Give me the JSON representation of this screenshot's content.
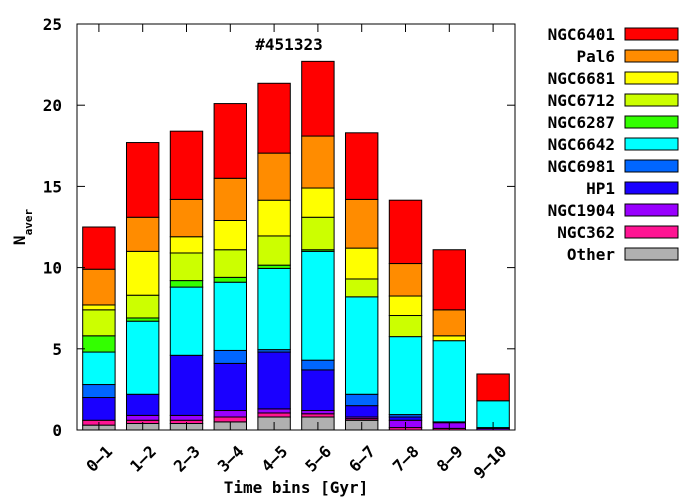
{
  "chart_data": {
    "type": "bar",
    "stacked": true,
    "title": "",
    "annotation": "#451323",
    "xlabel": "Time bins [Gyr]",
    "ylabel_main": "N",
    "ylabel_sub": "aver",
    "ylim": [
      0,
      25
    ],
    "yticks": [
      0,
      5,
      10,
      15,
      20,
      25
    ],
    "categories": [
      "0–1",
      "1–2",
      "2–3",
      "3–4",
      "4–5",
      "5–6",
      "6–7",
      "7–8",
      "8–9",
      "9–10"
    ],
    "legend_position": "outside-right",
    "series": [
      {
        "name": "Other",
        "color": "#b0b0b0",
        "values": [
          0.3,
          0.4,
          0.4,
          0.5,
          0.8,
          0.8,
          0.6,
          0.0,
          0.0,
          0.0
        ]
      },
      {
        "name": "NGC362",
        "color": "#ff1493",
        "values": [
          0.3,
          0.2,
          0.2,
          0.3,
          0.25,
          0.2,
          0.1,
          0.15,
          0.1,
          0.0
        ]
      },
      {
        "name": "NGC1904",
        "color": "#9900ff",
        "values": [
          0.0,
          0.3,
          0.3,
          0.4,
          0.25,
          0.2,
          0.1,
          0.45,
          0.35,
          0.1
        ]
      },
      {
        "name": "HP1",
        "color": "#1a00ff",
        "values": [
          1.4,
          1.3,
          3.7,
          2.9,
          3.5,
          2.5,
          0.7,
          0.2,
          0.0,
          0.05
        ]
      },
      {
        "name": "NGC6981",
        "color": "#0066ff",
        "values": [
          0.8,
          0.0,
          0.0,
          0.8,
          0.15,
          0.6,
          0.7,
          0.15,
          0.05,
          0.0
        ]
      },
      {
        "name": "NGC6642",
        "color": "#00ffff",
        "values": [
          2.0,
          4.5,
          4.2,
          4.2,
          5.0,
          6.7,
          6.0,
          4.8,
          5.0,
          1.65
        ]
      },
      {
        "name": "NGC6287",
        "color": "#33ff00",
        "values": [
          1.0,
          0.2,
          0.4,
          0.3,
          0.2,
          0.1,
          0.0,
          0.0,
          0.0,
          0.0
        ]
      },
      {
        "name": "NGC6712",
        "color": "#ccff00",
        "values": [
          1.6,
          1.4,
          1.7,
          1.7,
          1.8,
          2.0,
          1.1,
          1.3,
          0.0,
          0.0
        ]
      },
      {
        "name": "NGC6681",
        "color": "#ffff00",
        "values": [
          0.3,
          2.7,
          1.0,
          1.8,
          2.2,
          1.8,
          1.9,
          1.2,
          0.3,
          0.0
        ]
      },
      {
        "name": "Pal6",
        "color": "#ff8c00",
        "values": [
          2.2,
          2.1,
          2.3,
          2.6,
          2.9,
          3.2,
          3.0,
          2.0,
          1.6,
          0.0
        ]
      },
      {
        "name": "NGC6401",
        "color": "#ff0000",
        "values": [
          2.6,
          4.6,
          4.2,
          4.6,
          4.3,
          4.6,
          4.1,
          3.9,
          3.7,
          1.65
        ]
      }
    ]
  }
}
